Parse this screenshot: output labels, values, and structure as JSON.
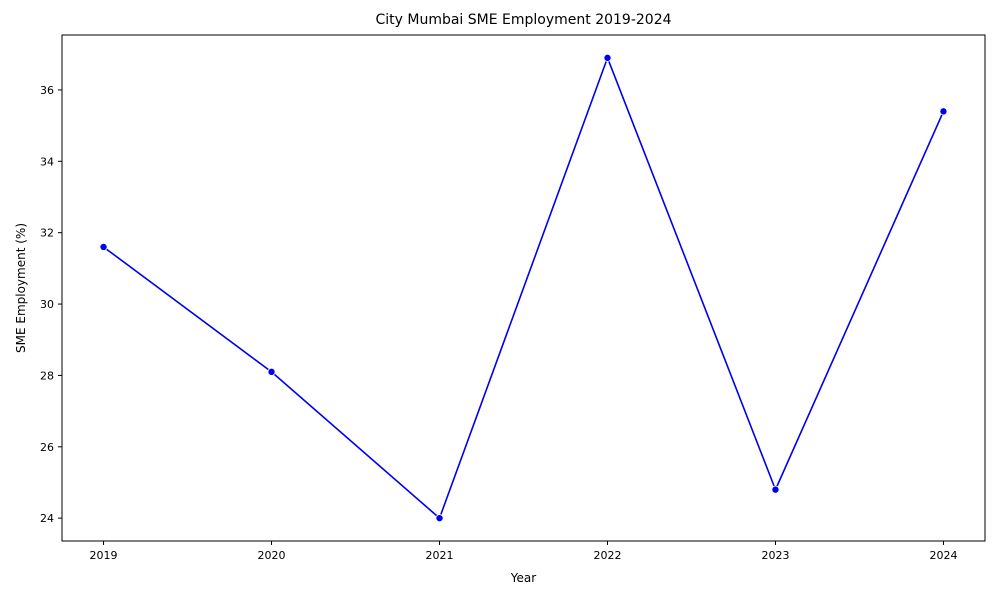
{
  "chart_data": {
    "type": "line",
    "title": "City Mumbai SME Employment 2019-2024",
    "xlabel": "Year",
    "ylabel": "SME Employment (%)",
    "x": [
      "2019",
      "2020",
      "2021",
      "2022",
      "2023",
      "2024"
    ],
    "series": [
      {
        "values": [
          31.6,
          28.1,
          24.0,
          36.9,
          24.8,
          35.4
        ],
        "color": "#0000ee",
        "marker": "circle"
      }
    ],
    "ylim": [
      23.36,
      37.54
    ],
    "yticks": [
      24,
      26,
      28,
      30,
      32,
      34,
      36
    ],
    "grid": false,
    "legend": "none"
  }
}
